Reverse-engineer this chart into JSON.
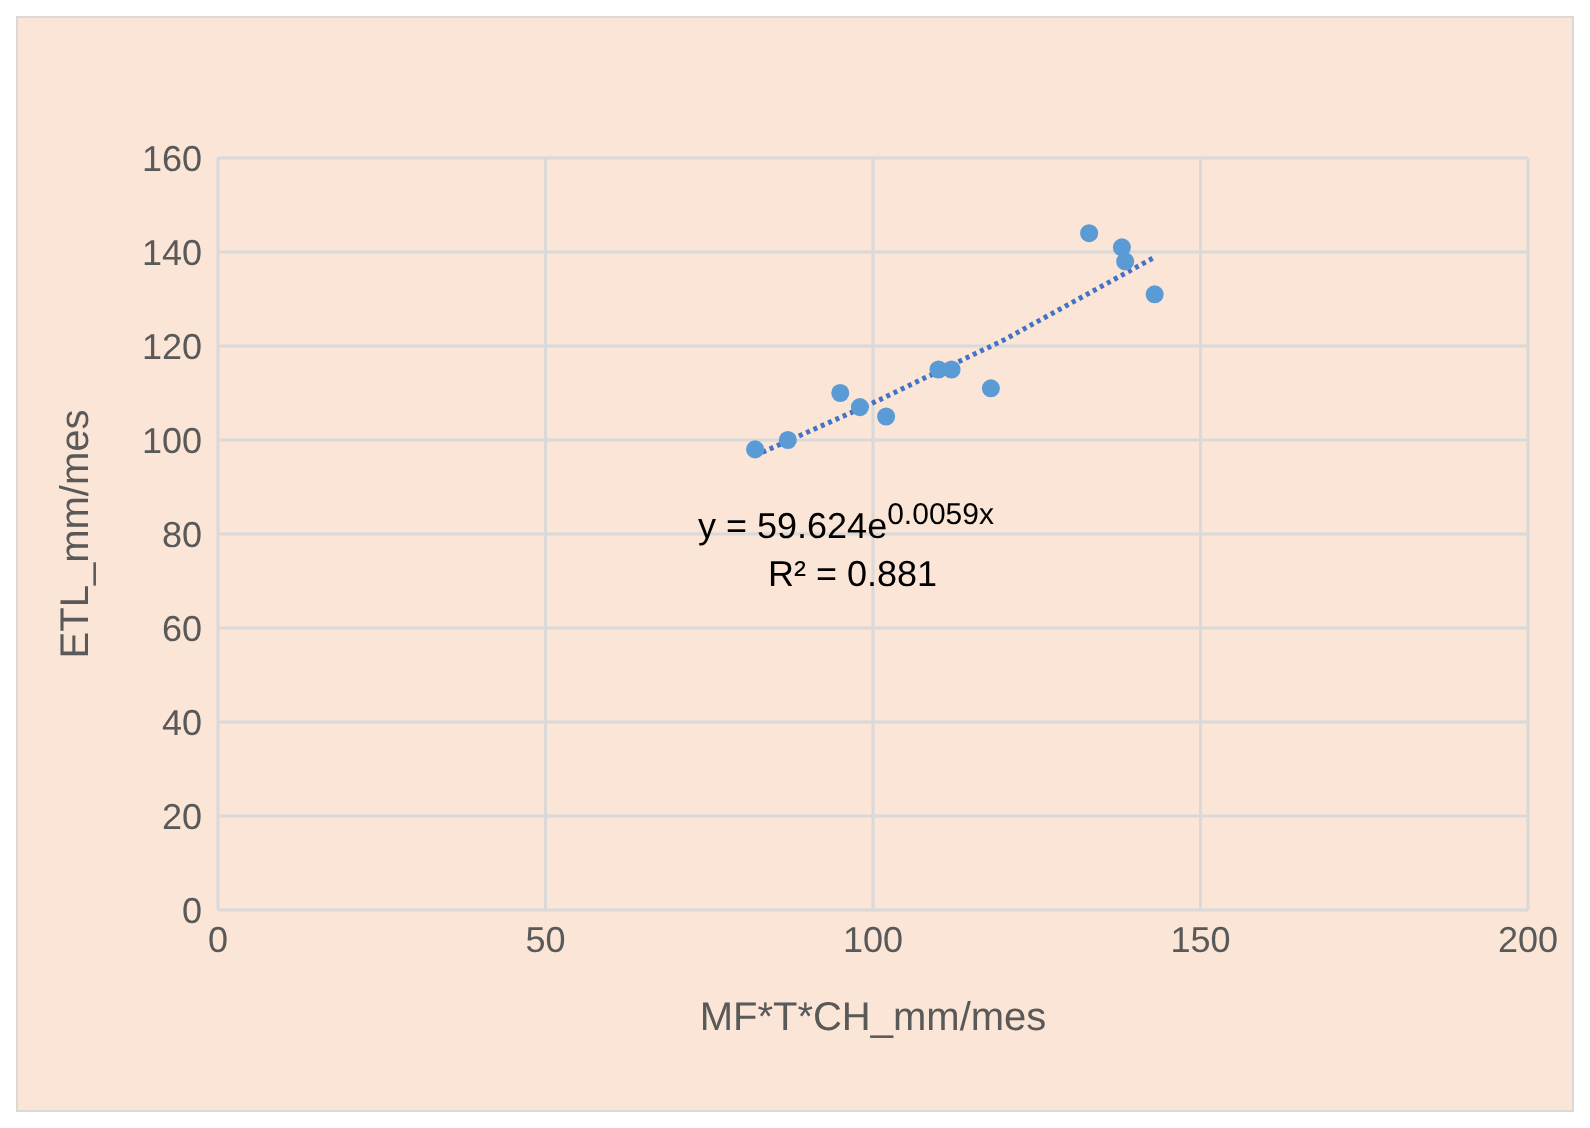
{
  "chart_data": {
    "type": "scatter",
    "xlabel": "MF*T*CH_mm/mes",
    "ylabel": "ETL_mm/mes",
    "xlim": [
      0,
      200
    ],
    "xticks": [
      0,
      50,
      100,
      150,
      200
    ],
    "ylim": [
      0,
      160
    ],
    "yticks": [
      0,
      20,
      40,
      60,
      80,
      100,
      120,
      140,
      160
    ],
    "grid": true,
    "marker": "circle",
    "series": [
      {
        "color": "#5b9bd5",
        "x": [
          82,
          87,
          95,
          98,
          102,
          110,
          112,
          118,
          133,
          138,
          138.5,
          143
        ],
        "values": [
          98,
          100,
          110,
          107,
          105,
          115,
          115,
          111,
          144,
          141,
          138,
          131
        ]
      },
      {
        "type": "line",
        "color": "#4472c4",
        "line_style": "dotted",
        "marker": "none",
        "x": [
          82,
          100,
          120,
          143
        ],
        "values": [
          96.7,
          107.9,
          121.3,
          138.9
        ]
      }
    ],
    "annotations": [
      "y = 59.624e$^{0.0059x}$",
      "R² = 0.881"
    ]
  }
}
